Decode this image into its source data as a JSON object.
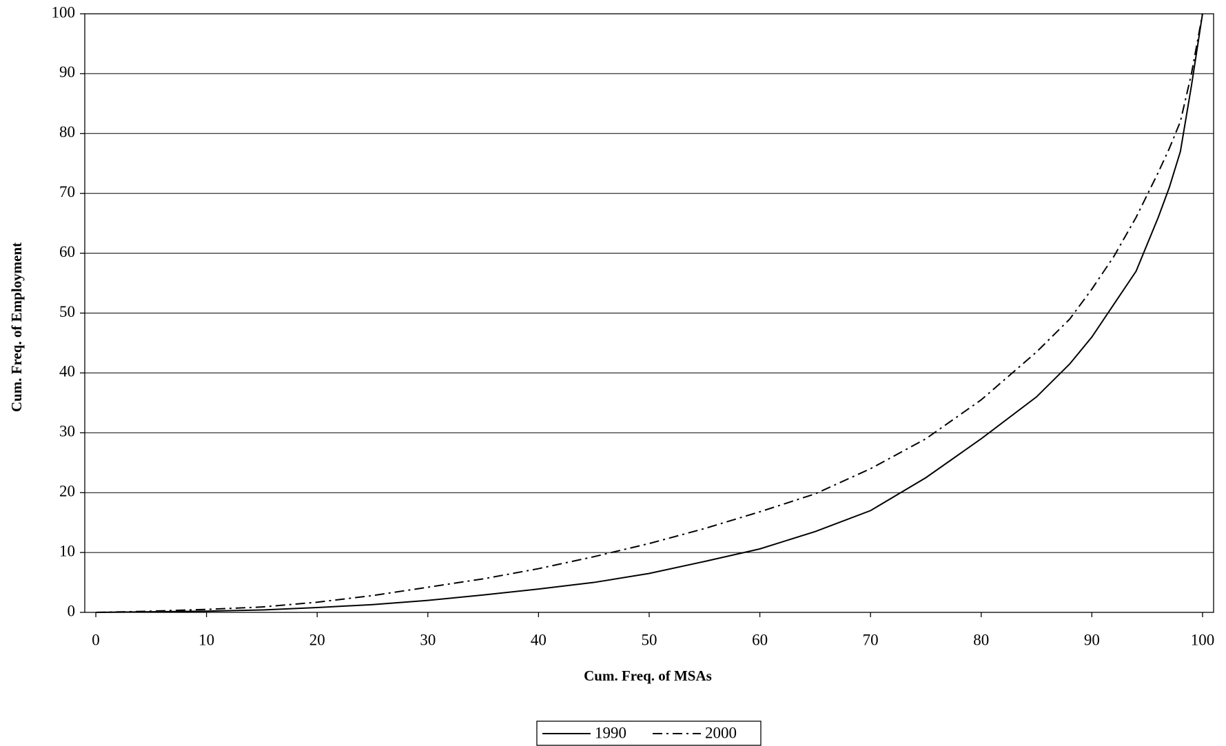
{
  "chart_data": {
    "type": "line",
    "x_label": "Cum. Freq. of MSAs",
    "y_label": "Cum. Freq. of Employment",
    "x": [
      0,
      5,
      10,
      15,
      20,
      25,
      30,
      35,
      40,
      45,
      50,
      55,
      60,
      65,
      70,
      75,
      80,
      85,
      88,
      90,
      92,
      94,
      96,
      97,
      98,
      99,
      100
    ],
    "series": [
      {
        "name": "1990",
        "color": "#000000",
        "dash": "solid",
        "values": [
          0,
          0.1,
          0.2,
          0.4,
          0.8,
          1.3,
          2,
          2.9,
          3.9,
          5,
          6.5,
          8.5,
          10.6,
          13.5,
          17,
          22.5,
          29,
          36,
          41.5,
          46,
          51.5,
          57,
          66,
          71,
          77,
          88,
          100
        ]
      },
      {
        "name": "2000",
        "color": "#000000",
        "dash": "dash-dot",
        "values": [
          0,
          0.2,
          0.5,
          0.9,
          1.7,
          2.8,
          4.2,
          5.6,
          7.3,
          9.3,
          11.5,
          14,
          16.8,
          19.8,
          24,
          29,
          35.5,
          43.5,
          49,
          54,
          59.5,
          66,
          73.5,
          77.5,
          82,
          90,
          100
        ]
      }
    ],
    "xlim": [
      -1,
      101
    ],
    "ylim": [
      0,
      100
    ],
    "xticks": [
      0,
      10,
      20,
      30,
      40,
      50,
      60,
      70,
      80,
      90,
      100
    ],
    "yticks": [
      0,
      10,
      20,
      30,
      40,
      50,
      60,
      70,
      80,
      90,
      100
    ],
    "grid": true,
    "legend": "bottom"
  }
}
